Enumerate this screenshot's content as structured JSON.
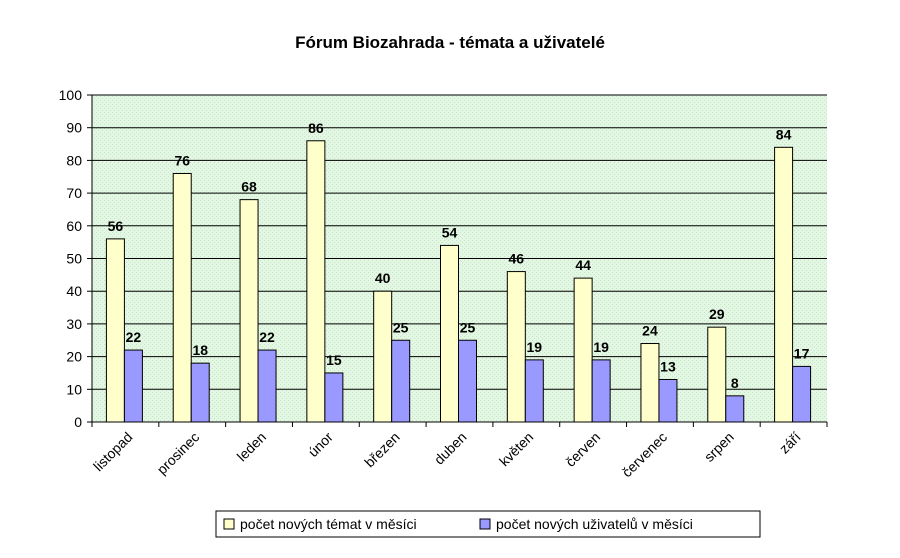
{
  "chart_data": {
    "type": "bar",
    "title": "Fórum Biozahrada -  témata a uživatelé",
    "categories": [
      "listopad",
      "prosinec",
      "leden",
      "únor",
      "březen",
      "duben",
      "květen",
      "červen",
      "červenec",
      "srpen",
      "září"
    ],
    "series": [
      {
        "name": "počet nových témat v měsíci",
        "values": [
          56,
          76,
          68,
          86,
          40,
          54,
          46,
          44,
          24,
          29,
          84
        ],
        "color": "#FFFFCC"
      },
      {
        "name": "počet nových uživatelů v měsíci",
        "values": [
          22,
          18,
          22,
          15,
          25,
          25,
          19,
          19,
          13,
          8,
          17
        ],
        "color": "#9999FF"
      }
    ],
    "ylim": [
      0,
      100
    ],
    "yticks": [
      0,
      10,
      20,
      30,
      40,
      50,
      60,
      70,
      80,
      90,
      100
    ],
    "grid": true,
    "plot_background": "#E8F8E8",
    "legend_position": "bottom",
    "data_labels": true
  }
}
